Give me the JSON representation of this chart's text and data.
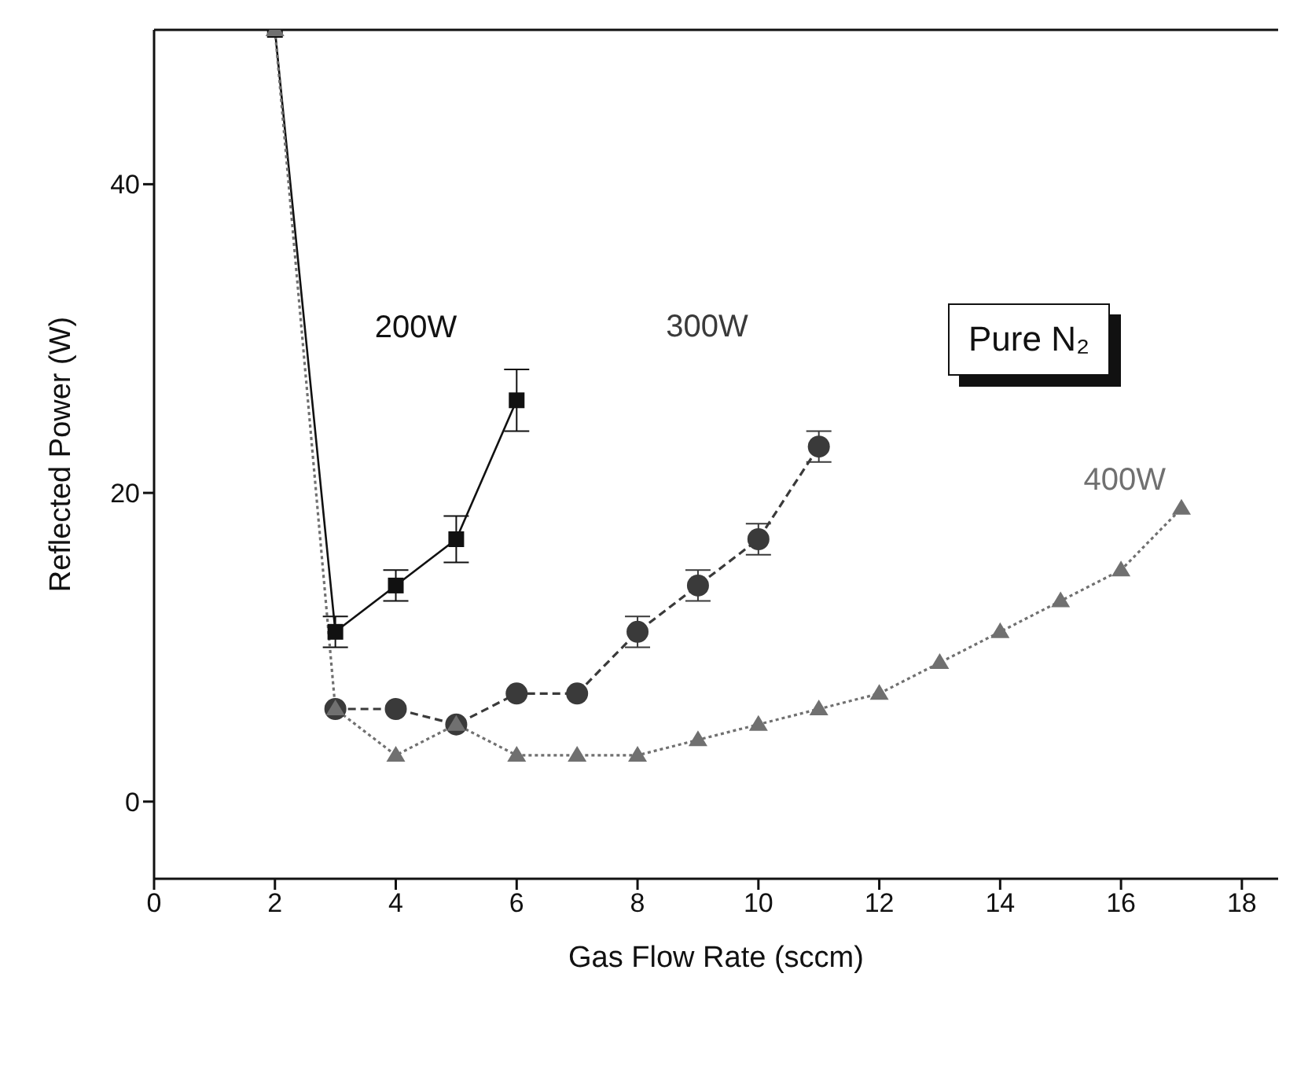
{
  "chart_data": {
    "type": "line",
    "xlabel": "Gas Flow Rate (sccm)",
    "ylabel": "Reflected Power (W)",
    "annotations": [
      "Pure N₂"
    ],
    "xlim": [
      0,
      18.6
    ],
    "xticks": [
      0,
      2,
      4,
      6,
      8,
      10,
      12,
      14,
      16,
      18
    ],
    "ylim": [
      -5,
      50
    ],
    "yticks": [
      0,
      20,
      40
    ],
    "grid": false,
    "legend": false,
    "series": [
      {
        "name": "200W",
        "color": "#111111",
        "marker": "square",
        "line_style": "solid",
        "x": [
          2,
          3,
          4,
          5,
          6
        ],
        "values": [
          50,
          11,
          14,
          17,
          26
        ],
        "errors": [
          null,
          1,
          1,
          1.5,
          2
        ]
      },
      {
        "name": "300W",
        "color": "#3a3a3a",
        "marker": "circle",
        "line_style": "dashed",
        "x": [
          3,
          4,
          5,
          6,
          7,
          8,
          9,
          10,
          11
        ],
        "values": [
          6,
          6,
          5,
          7,
          7,
          11,
          14,
          17,
          23
        ],
        "errors": [
          null,
          null,
          null,
          null,
          null,
          1,
          1,
          1,
          1
        ]
      },
      {
        "name": "400W",
        "color": "#707070",
        "marker": "triangle",
        "line_style": "dotted",
        "x": [
          2,
          3,
          4,
          5,
          6,
          7,
          8,
          9,
          10,
          11,
          12,
          13,
          14,
          15,
          16,
          17
        ],
        "values": [
          50,
          6,
          3,
          5,
          3,
          3,
          3,
          4,
          5,
          6,
          7,
          9,
          11,
          13,
          15,
          19
        ]
      }
    ]
  }
}
